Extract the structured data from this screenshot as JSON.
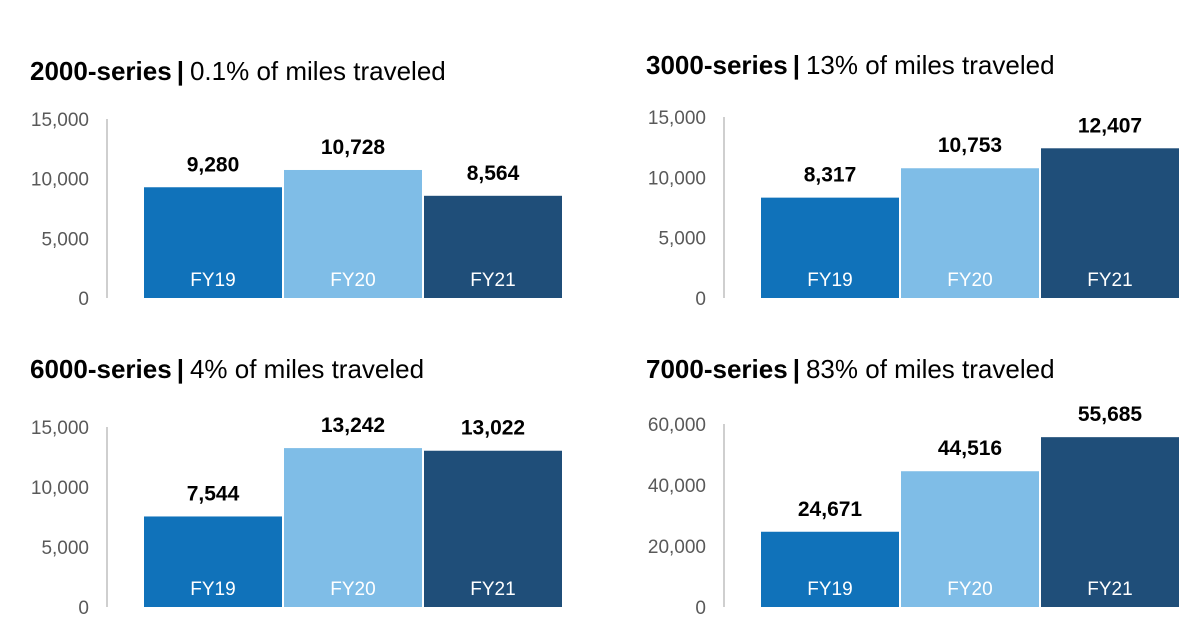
{
  "colors": {
    "FY19": "#1072BA",
    "FY20": "#7FBDE7",
    "FY21": "#1F4E79",
    "axis": "#BFBFBF"
  },
  "chart_data": [
    {
      "type": "bar",
      "title_series": "2000-series",
      "title_share": "0.1%  of miles traveled",
      "categories": [
        "FY19",
        "FY20",
        "FY21"
      ],
      "values": [
        9280,
        10728,
        8564
      ],
      "value_labels": [
        "9,280",
        "10,728",
        "8,564"
      ],
      "ylim": [
        0,
        15000
      ],
      "yticks": [
        0,
        5000,
        10000,
        15000
      ],
      "ytick_labels": [
        "0",
        "5,000",
        "10,000",
        "15,000"
      ],
      "grid": false
    },
    {
      "type": "bar",
      "title_series": "3000-series",
      "title_share": "13% of miles traveled",
      "categories": [
        "FY19",
        "FY20",
        "FY21"
      ],
      "values": [
        8317,
        10753,
        12407
      ],
      "value_labels": [
        "8,317",
        "10,753",
        "12,407"
      ],
      "ylim": [
        0,
        15000
      ],
      "yticks": [
        0,
        5000,
        10000,
        15000
      ],
      "ytick_labels": [
        "0",
        "5,000",
        "10,000",
        "15,000"
      ],
      "grid": false
    },
    {
      "type": "bar",
      "title_series": "6000-series",
      "title_share": "4% of miles traveled",
      "categories": [
        "FY19",
        "FY20",
        "FY21"
      ],
      "values": [
        7544,
        13242,
        13022
      ],
      "value_labels": [
        "7,544",
        "13,242",
        "13,022"
      ],
      "ylim": [
        0,
        15000
      ],
      "yticks": [
        0,
        5000,
        10000,
        15000
      ],
      "ytick_labels": [
        "0",
        "5,000",
        "10,000",
        "15,000"
      ],
      "grid": false
    },
    {
      "type": "bar",
      "title_series": "7000-series",
      "title_share": "83% of miles traveled",
      "categories": [
        "FY19",
        "FY20",
        "FY21"
      ],
      "values": [
        24671,
        44516,
        55685
      ],
      "value_labels": [
        "24,671",
        "44,516",
        "55,685"
      ],
      "ylim": [
        0,
        60000
      ],
      "yticks": [
        0,
        20000,
        40000,
        60000
      ],
      "ytick_labels": [
        "0",
        "20,000",
        "40,000",
        "60,000"
      ],
      "grid": false
    }
  ]
}
